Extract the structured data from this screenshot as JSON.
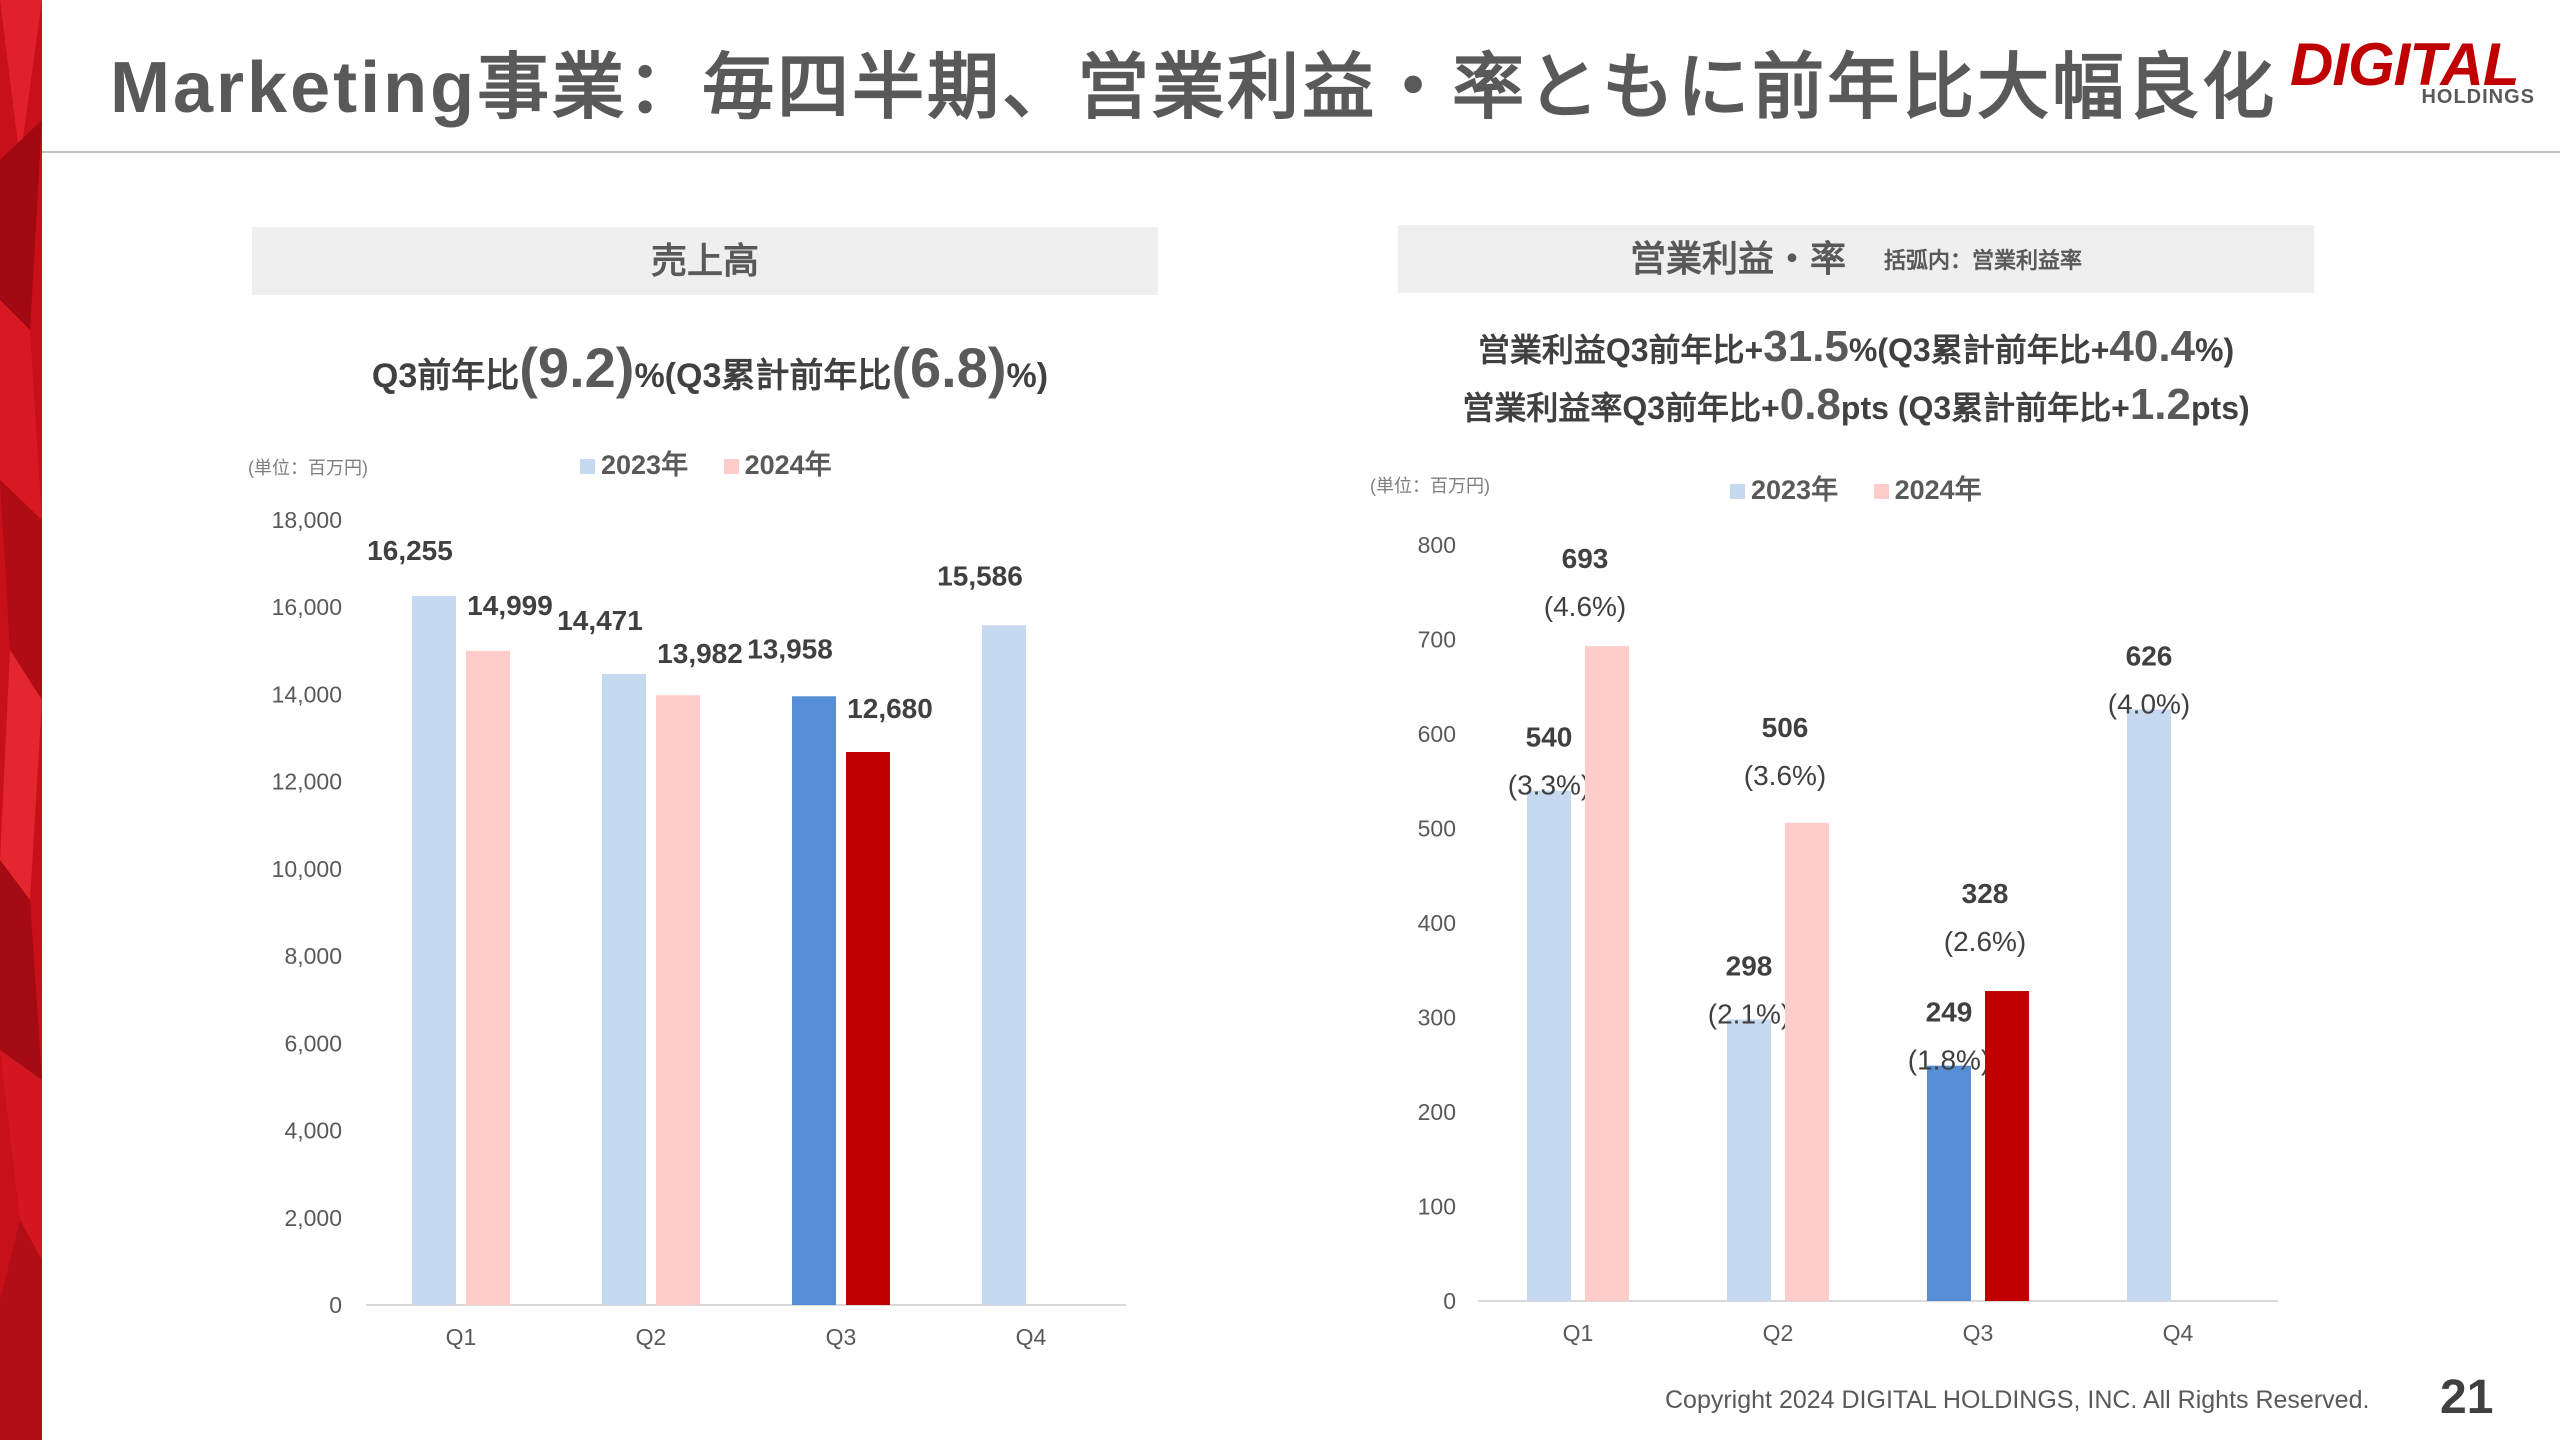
{
  "title": "Marketing事業：毎四半期、営業利益・率ともに前年比大幅良化",
  "logo": {
    "main": "DIGITAL",
    "sub": "HOLDINGS"
  },
  "colors": {
    "accent": "#c00000",
    "prev_light": "#c5d9f1",
    "curr_light": "#ffcccc",
    "prev_dark": "#558ed5",
    "curr_dark": "#c00000"
  },
  "left_panel": {
    "header": "売上高",
    "headline": {
      "a": "Q3前年比",
      "b": "(",
      "c": "9.2",
      "d": ")",
      "e": "%(Q3累計前年比",
      "f": "(",
      "g": "6.8",
      "h": ")",
      "i": "%)"
    },
    "unit_note": "(単位：百万円)"
  },
  "right_panel": {
    "header": "営業利益・率",
    "header_note": "括弧内：営業利益率",
    "headline1": {
      "a": "営業利益Q3前年比+",
      "b": "31.5",
      "c": "%(Q3累計前年比+",
      "d": "40.4",
      "e": "%)"
    },
    "headline2": {
      "a": "営業利益率Q3前年比+",
      "b": "0.8",
      "c": "pts (Q3累計前年比+",
      "d": "1.2",
      "e": "pts)"
    },
    "unit_note": "(単位：百万円)"
  },
  "legend": {
    "prev": "2023年",
    "curr": "2024年"
  },
  "chart_data": [
    {
      "type": "bar",
      "title": "売上高",
      "categories": [
        "Q1",
        "Q2",
        "Q3",
        "Q4"
      ],
      "series": [
        {
          "name": "2023年",
          "values": [
            16255,
            14471,
            13958,
            15586
          ],
          "labels": [
            "16,255",
            "14,471",
            "13,958",
            "15,586"
          ]
        },
        {
          "name": "2024年",
          "values": [
            14999,
            13982,
            12680,
            null
          ],
          "labels": [
            "14,999",
            "13,982",
            "12,680",
            ""
          ]
        }
      ],
      "ylim": [
        0,
        18000
      ],
      "yticks": [
        "0",
        "2,000",
        "4,000",
        "6,000",
        "8,000",
        "10,000",
        "12,000",
        "14,000",
        "16,000",
        "18,000"
      ],
      "highlight_category": "Q3",
      "grid": false,
      "legend_position": "top"
    },
    {
      "type": "bar",
      "title": "営業利益・率",
      "categories": [
        "Q1",
        "Q2",
        "Q3",
        "Q4"
      ],
      "series": [
        {
          "name": "2023年",
          "values": [
            540,
            298,
            249,
            626
          ],
          "labels": [
            "540",
            "298",
            "249",
            "626"
          ],
          "rates": [
            "(3.3%)",
            "(2.1%)",
            "(1.8%)",
            "(4.0%)"
          ]
        },
        {
          "name": "2024年",
          "values": [
            693,
            506,
            328,
            null
          ],
          "labels": [
            "693",
            "506",
            "328",
            ""
          ],
          "rates": [
            "(4.6%)",
            "(3.6%)",
            "(2.6%)",
            ""
          ]
        }
      ],
      "ylim": [
        0,
        800
      ],
      "yticks": [
        "0",
        "100",
        "200",
        "300",
        "400",
        "500",
        "600",
        "700",
        "800"
      ],
      "highlight_category": "Q3",
      "grid": false,
      "legend_position": "top"
    }
  ],
  "footer": "Copyright 2024 DIGITAL HOLDINGS, INC. All Rights Reserved.",
  "page_number": "21"
}
